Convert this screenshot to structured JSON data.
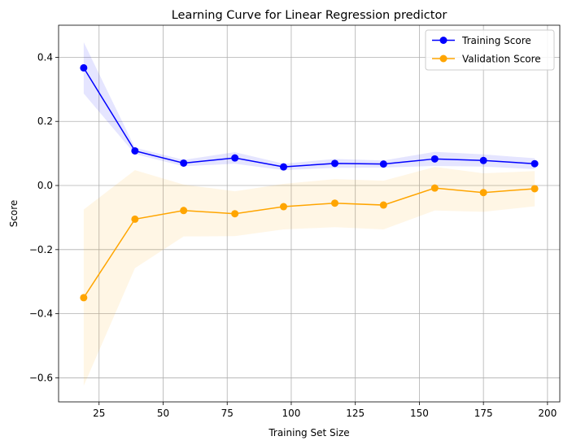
{
  "chart_data": {
    "type": "line",
    "title": "Learning Curve for Linear Regression predictor",
    "xlabel": "Training Set Size",
    "ylabel": "Score",
    "xlim": [
      9.2,
      204.8
    ],
    "ylim": [
      -0.675,
      0.5
    ],
    "xticks": [
      25,
      50,
      75,
      100,
      125,
      150,
      175,
      200
    ],
    "xtick_labels": [
      "25",
      "50",
      "75",
      "100",
      "125",
      "150",
      "175",
      "200"
    ],
    "yticks": [
      -0.6,
      -0.4,
      -0.2,
      0.0,
      0.2,
      0.4
    ],
    "ytick_labels": [
      "−0.6",
      "−0.4",
      "−0.2",
      "0.0",
      "0.2",
      "0.4"
    ],
    "grid": true,
    "legend_position": "top-right",
    "x": [
      19,
      39,
      58,
      78,
      97,
      117,
      136,
      156,
      175,
      195
    ],
    "series": [
      {
        "name": "Training Score",
        "color": "#0000ff",
        "values": [
          0.367,
          0.108,
          0.07,
          0.086,
          0.058,
          0.069,
          0.067,
          0.083,
          0.078,
          0.068
        ],
        "band_upper": [
          0.447,
          0.118,
          0.08,
          0.104,
          0.068,
          0.083,
          0.078,
          0.105,
          0.097,
          0.085
        ],
        "band_lower": [
          0.287,
          0.098,
          0.06,
          0.068,
          0.048,
          0.055,
          0.056,
          0.061,
          0.059,
          0.051
        ]
      },
      {
        "name": "Validation Score",
        "color": "#ffa500",
        "values": [
          -0.35,
          -0.105,
          -0.078,
          -0.088,
          -0.066,
          -0.055,
          -0.061,
          -0.008,
          -0.022,
          -0.01
        ],
        "band_upper": [
          -0.075,
          0.048,
          0.003,
          -0.018,
          0.005,
          0.02,
          0.015,
          0.058,
          0.038,
          0.045
        ],
        "band_lower": [
          -0.625,
          -0.258,
          -0.159,
          -0.158,
          -0.137,
          -0.13,
          -0.137,
          -0.078,
          -0.082,
          -0.065
        ]
      }
    ]
  }
}
